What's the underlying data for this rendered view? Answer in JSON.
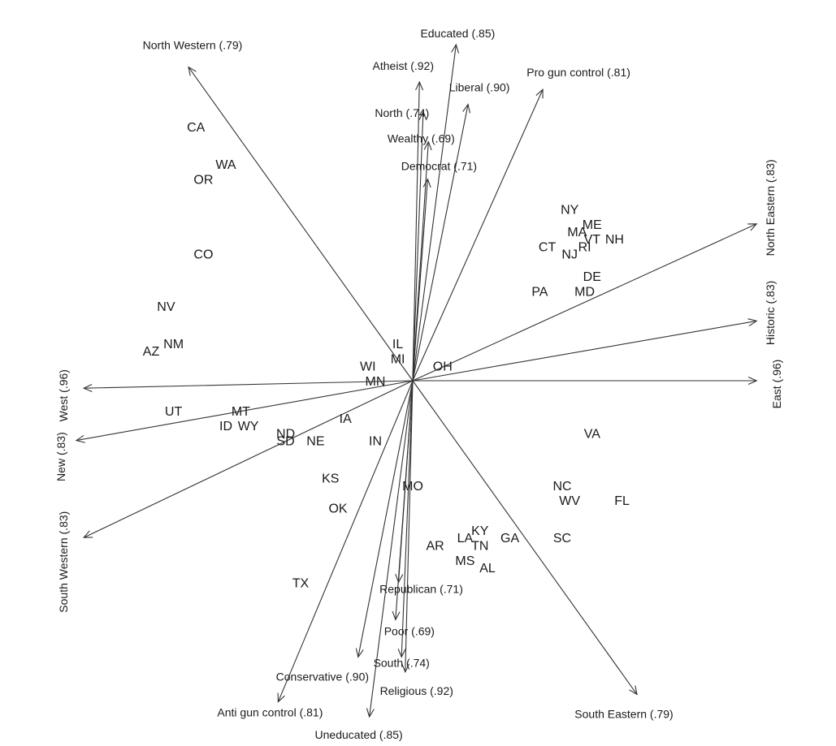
{
  "chart_data": {
    "type": "biplot",
    "title": "",
    "vectors": [
      {
        "label": "North Western (.79)",
        "x": -0.3,
        "y": 0.42
      },
      {
        "label": "Educated (.85)",
        "x": 0.058,
        "y": 0.45
      },
      {
        "label": "Atheist (.92)",
        "x": 0.009,
        "y": 0.4
      },
      {
        "label": "Liberal (.90)",
        "x": 0.074,
        "y": 0.37
      },
      {
        "label": "Pro gun control (.81)",
        "x": 0.174,
        "y": 0.39
      },
      {
        "label": "North (.74)",
        "x": 0.014,
        "y": 0.36
      },
      {
        "label": "Wealthy (.69)",
        "x": 0.021,
        "y": 0.32
      },
      {
        "label": "Democrat (.71)",
        "x": 0.02,
        "y": 0.27
      },
      {
        "label": "North Eastern (.83)",
        "x": 0.46,
        "y": 0.21
      },
      {
        "label": "Historic (.83)",
        "x": 0.46,
        "y": 0.08
      },
      {
        "label": "East (.96)",
        "x": 0.46,
        "y": 0.0
      },
      {
        "label": "West (.96)",
        "x": -0.44,
        "y": -0.01
      },
      {
        "label": "New (.83)",
        "x": -0.45,
        "y": -0.08
      },
      {
        "label": "South Western (.83)",
        "x": -0.44,
        "y": -0.21
      },
      {
        "label": "Republican (.71)",
        "x": -0.019,
        "y": -0.27
      },
      {
        "label": "Poor (.69)",
        "x": -0.023,
        "y": -0.32
      },
      {
        "label": "South (.74)",
        "x": -0.015,
        "y": -0.37
      },
      {
        "label": "Conservative (.90)",
        "x": -0.073,
        "y": -0.37
      },
      {
        "label": "Religious (.92)",
        "x": -0.01,
        "y": -0.39
      },
      {
        "label": "Anti gun control (.81)",
        "x": -0.18,
        "y": -0.43
      },
      {
        "label": "Uneducated (.85)",
        "x": -0.058,
        "y": -0.45
      },
      {
        "label": "South Eastern (.79)",
        "x": 0.3,
        "y": -0.42
      }
    ],
    "points": [
      {
        "label": "CA",
        "x": -0.29,
        "y": 0.34
      },
      {
        "label": "WA",
        "x": -0.25,
        "y": 0.29
      },
      {
        "label": "OR",
        "x": -0.28,
        "y": 0.27
      },
      {
        "label": "CO",
        "x": -0.28,
        "y": 0.17
      },
      {
        "label": "NV",
        "x": -0.33,
        "y": 0.1
      },
      {
        "label": "AZ",
        "x": -0.35,
        "y": 0.04
      },
      {
        "label": "NM",
        "x": -0.32,
        "y": 0.05
      },
      {
        "label": "IL",
        "x": -0.02,
        "y": 0.05
      },
      {
        "label": "MI",
        "x": -0.02,
        "y": 0.03
      },
      {
        "label": "WI",
        "x": -0.06,
        "y": 0.02
      },
      {
        "label": "MN",
        "x": -0.05,
        "y": 0.0
      },
      {
        "label": "OH",
        "x": 0.04,
        "y": 0.02
      },
      {
        "label": "NY",
        "x": 0.21,
        "y": 0.23
      },
      {
        "label": "ME",
        "x": 0.24,
        "y": 0.21
      },
      {
        "label": "MA",
        "x": 0.22,
        "y": 0.2
      },
      {
        "label": "VT",
        "x": 0.24,
        "y": 0.19
      },
      {
        "label": "NH",
        "x": 0.27,
        "y": 0.19
      },
      {
        "label": "CT",
        "x": 0.18,
        "y": 0.18
      },
      {
        "label": "RI",
        "x": 0.23,
        "y": 0.18
      },
      {
        "label": "NJ",
        "x": 0.21,
        "y": 0.17
      },
      {
        "label": "DE",
        "x": 0.24,
        "y": 0.14
      },
      {
        "label": "PA",
        "x": 0.17,
        "y": 0.12
      },
      {
        "label": "MD",
        "x": 0.23,
        "y": 0.12
      },
      {
        "label": "UT",
        "x": -0.32,
        "y": -0.04
      },
      {
        "label": "MT",
        "x": -0.23,
        "y": -0.04
      },
      {
        "label": "ID",
        "x": -0.25,
        "y": -0.06
      },
      {
        "label": "WY",
        "x": -0.22,
        "y": -0.06
      },
      {
        "label": "ND",
        "x": -0.17,
        "y": -0.07
      },
      {
        "label": "SD",
        "x": -0.17,
        "y": -0.08
      },
      {
        "label": "NE",
        "x": -0.13,
        "y": -0.08
      },
      {
        "label": "IA",
        "x": -0.09,
        "y": -0.05
      },
      {
        "label": "IN",
        "x": -0.05,
        "y": -0.08
      },
      {
        "label": "KS",
        "x": -0.11,
        "y": -0.13
      },
      {
        "label": "OK",
        "x": -0.1,
        "y": -0.17
      },
      {
        "label": "MO",
        "x": 0.0,
        "y": -0.14
      },
      {
        "label": "TX",
        "x": -0.15,
        "y": -0.27
      },
      {
        "label": "VA",
        "x": 0.24,
        "y": -0.07
      },
      {
        "label": "NC",
        "x": 0.2,
        "y": -0.14
      },
      {
        "label": "WV",
        "x": 0.21,
        "y": -0.16
      },
      {
        "label": "FL",
        "x": 0.28,
        "y": -0.16
      },
      {
        "label": "SC",
        "x": 0.2,
        "y": -0.21
      },
      {
        "label": "AR",
        "x": 0.03,
        "y": -0.22
      },
      {
        "label": "LA",
        "x": 0.07,
        "y": -0.21
      },
      {
        "label": "KY",
        "x": 0.09,
        "y": -0.2
      },
      {
        "label": "TN",
        "x": 0.09,
        "y": -0.22
      },
      {
        "label": "GA",
        "x": 0.13,
        "y": -0.21
      },
      {
        "label": "MS",
        "x": 0.07,
        "y": -0.24
      },
      {
        "label": "AL",
        "x": 0.1,
        "y": -0.25
      }
    ]
  }
}
